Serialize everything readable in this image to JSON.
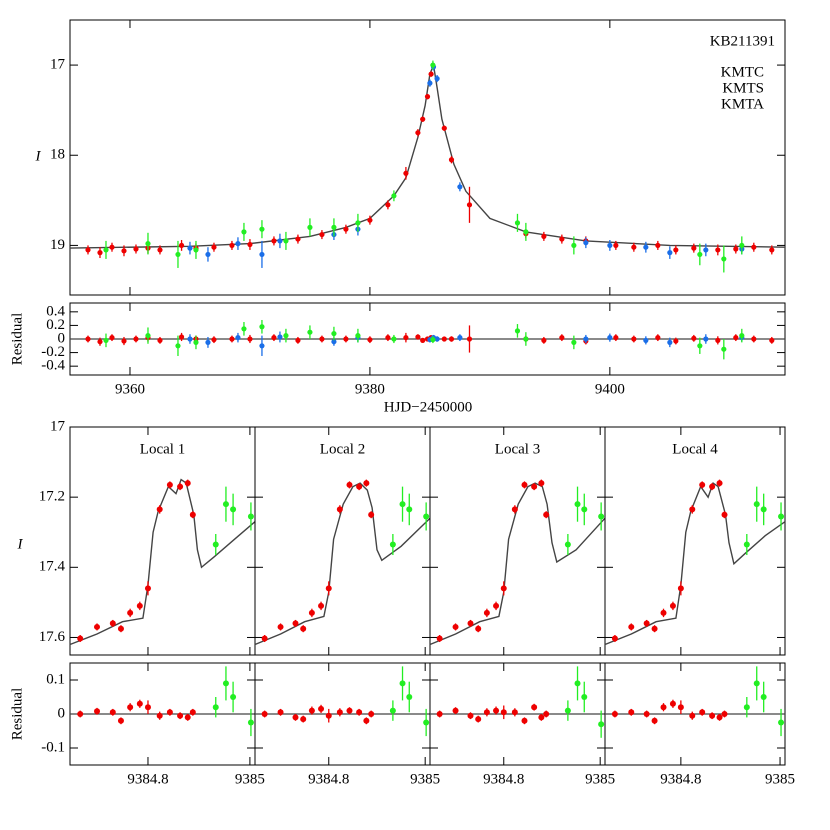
{
  "chart_data": [
    {
      "type": "scatter",
      "title": "KB211391",
      "ylabel": "I",
      "xlabel": "HJD−2450000",
      "residual_label": "Residual",
      "xlim": [
        9355,
        9414.6
      ],
      "xticks": [
        9360,
        9380,
        9400
      ],
      "ylim": [
        19.55,
        16.5
      ],
      "yticks": [
        17,
        18,
        19
      ],
      "residual_ylim": [
        -0.53,
        0.53
      ],
      "residual_yticks": [
        0.4,
        0.2,
        0,
        -0.2,
        -0.4
      ],
      "model": {
        "color": "#444444",
        "x": [
          9355,
          9365,
          9370,
          9375,
          9378,
          9380,
          9382,
          9383,
          9384,
          9384.6,
          9385,
          9385.3,
          9385.6,
          9386,
          9387,
          9388,
          9390,
          9393,
          9398,
          9405,
          9414.6
        ],
        "values": [
          19.03,
          19.01,
          18.98,
          18.9,
          18.8,
          18.7,
          18.45,
          18.25,
          17.8,
          17.45,
          17.1,
          17.0,
          17.25,
          17.6,
          18.1,
          18.4,
          18.7,
          18.85,
          18.95,
          19.0,
          19.02
        ]
      },
      "series": [
        {
          "name": "KMTC",
          "color": "#ee0000",
          "x": [
            9356.5,
            9357.5,
            9358.5,
            9359.5,
            9360.5,
            9361.5,
            9362.5,
            9364.3,
            9365.5,
            9367,
            9368.5,
            9370,
            9372,
            9374,
            9376,
            9378,
            9380,
            9381.5,
            9383,
            9384,
            9384.4,
            9384.8,
            9385.1,
            9386.2,
            9386.8,
            9388.3,
            9393,
            9394.5,
            9396,
            9398,
            9400.5,
            9402,
            9404,
            9405.5,
            9407,
            9409,
            9410.5,
            9412,
            9413.5
          ],
          "values": [
            19.05,
            19.08,
            19.02,
            19.06,
            19.04,
            19.03,
            19.05,
            19.0,
            19.03,
            19.02,
            19.0,
            18.99,
            18.95,
            18.93,
            18.88,
            18.82,
            18.72,
            18.55,
            18.2,
            17.75,
            17.6,
            17.35,
            17.1,
            17.7,
            18.05,
            18.55,
            18.87,
            18.9,
            18.93,
            18.95,
            19.0,
            19.02,
            19.0,
            19.05,
            19.03,
            19.05,
            19.04,
            19.02,
            19.05
          ],
          "errors": [
            0.05,
            0.06,
            0.05,
            0.06,
            0.05,
            0.06,
            0.05,
            0.06,
            0.05,
            0.05,
            0.05,
            0.06,
            0.05,
            0.05,
            0.05,
            0.05,
            0.05,
            0.05,
            0.07,
            0.04,
            0.03,
            0.03,
            0.03,
            0.03,
            0.04,
            0.2,
            0.05,
            0.05,
            0.05,
            0.05,
            0.05,
            0.05,
            0.05,
            0.05,
            0.05,
            0.06,
            0.05,
            0.05,
            0.05
          ],
          "residuals": [
            0,
            -0.04,
            0.02,
            -0.03,
            0,
            0.02,
            -0.02,
            0.03,
            0,
            -0.01,
            0,
            0,
            0.02,
            -0.02,
            0,
            0,
            -0.01,
            0.02,
            0.02,
            0.03,
            -0.02,
            0,
            0.02,
            0,
            0,
            0,
            0,
            -0.02,
            0.02,
            -0.03,
            0.02,
            0,
            0.02,
            -0.03,
            0.01,
            -0.02,
            0.02,
            0,
            -0.02
          ]
        },
        {
          "name": "KMTS",
          "color": "#1a6ee8",
          "x": [
            9365,
            9366.5,
            9369,
            9371,
            9372.5,
            9377,
            9379,
            9385.0,
            9385.3,
            9385.6,
            9387.5,
            9398,
            9400,
            9403,
            9405,
            9408,
            9411
          ],
          "values": [
            19.03,
            19.1,
            18.98,
            19.1,
            18.95,
            18.88,
            18.82,
            17.2,
            17.02,
            17.15,
            18.35,
            18.97,
            19.0,
            19.02,
            19.08,
            19.05,
            19.04
          ],
          "errors": [
            0.07,
            0.08,
            0.07,
            0.15,
            0.08,
            0.06,
            0.07,
            0.04,
            0.04,
            0.04,
            0.05,
            0.06,
            0.06,
            0.06,
            0.07,
            0.07,
            0.06
          ],
          "residuals": [
            0,
            -0.05,
            0.02,
            -0.1,
            0.03,
            -0.04,
            0.02,
            -0.01,
            0.02,
            0,
            0.02,
            0,
            0.02,
            -0.02,
            -0.05,
            0,
            0.02
          ]
        },
        {
          "name": "KMTA",
          "color": "#22ee22",
          "x": [
            9358,
            9361.5,
            9364,
            9365.5,
            9369.5,
            9371,
            9373,
            9375,
            9377,
            9379,
            9382,
            9385.25,
            9392.3,
            9393,
            9397,
            9407.5,
            9409.5,
            9411
          ],
          "values": [
            19.05,
            18.98,
            19.1,
            19.05,
            18.85,
            18.82,
            18.95,
            18.8,
            18.8,
            18.75,
            18.45,
            17.0,
            18.75,
            18.85,
            19.0,
            19.1,
            19.15,
            19.0
          ],
          "errors": [
            0.1,
            0.12,
            0.15,
            0.1,
            0.1,
            0.1,
            0.1,
            0.1,
            0.1,
            0.1,
            0.06,
            0.05,
            0.1,
            0.1,
            0.1,
            0.12,
            0.15,
            0.1
          ],
          "residuals": [
            -0.02,
            0.05,
            -0.1,
            -0.05,
            0.15,
            0.18,
            0.05,
            0.1,
            0.08,
            0.05,
            0,
            -0.01,
            0.12,
            0,
            -0.05,
            -0.1,
            -0.15,
            0.05
          ]
        }
      ]
    },
    {
      "type": "scatter",
      "title": "Local 1",
      "ylabel": "I",
      "residual_label": "Residual",
      "xlim": [
        9384.647,
        9385.01
      ],
      "xticks": [
        9384.8,
        9385
      ],
      "ylim": [
        17.65,
        17.0
      ],
      "yticks": [
        17,
        17.2,
        17.4,
        17.6
      ],
      "residual_ylim": [
        -0.15,
        0.15
      ],
      "residual_yticks": [
        0.1,
        0,
        -0.1
      ],
      "model": {
        "color": "#444444",
        "x": [
          9384.647,
          9384.7,
          9384.75,
          9384.79,
          9384.8,
          9384.81,
          9384.82,
          9384.84,
          9384.855,
          9384.865,
          9384.875,
          9384.89,
          9384.897,
          9384.905,
          9384.93,
          9384.97,
          9385.01
        ],
        "values": [
          17.62,
          17.59,
          17.555,
          17.545,
          17.45,
          17.3,
          17.24,
          17.17,
          17.19,
          17.15,
          17.16,
          17.25,
          17.35,
          17.4,
          17.37,
          17.32,
          17.27
        ]
      },
      "series": [
        {
          "color": "#ee0000",
          "x": [
            9384.667,
            9384.7,
            9384.731,
            9384.747,
            9384.765,
            9384.784,
            9384.8,
            9384.823,
            9384.843,
            9384.863,
            9384.878,
            9384.888
          ],
          "values": [
            17.603,
            17.57,
            17.56,
            17.575,
            17.53,
            17.51,
            17.46,
            17.235,
            17.165,
            17.17,
            17.16,
            17.25
          ],
          "errors": [
            0.01,
            0.01,
            0.01,
            0.01,
            0.012,
            0.012,
            0.02,
            0.012,
            0.01,
            0.01,
            0.01,
            0.01
          ],
          "residuals": [
            0,
            0.008,
            0.005,
            -0.02,
            0.02,
            0.03,
            0.02,
            -0.005,
            0.005,
            -0.005,
            -0.01,
            0.005
          ]
        },
        {
          "color": "#22ee22",
          "x": [
            9384.933,
            9384.953,
            9384.967,
            9385.002
          ],
          "values": [
            17.335,
            17.22,
            17.235,
            17.255
          ],
          "errors": [
            0.03,
            0.05,
            0.045,
            0.04
          ],
          "residuals": [
            0.02,
            0.09,
            0.05,
            -0.025
          ]
        }
      ]
    },
    {
      "type": "scatter",
      "title": "Local 2",
      "xlim": [
        9384.647,
        9385.01
      ],
      "xticks": [
        9384.8,
        9385
      ],
      "ylim": [
        17.65,
        17.0
      ],
      "yticks": [
        17,
        17.2,
        17.4,
        17.6
      ],
      "residual_ylim": [
        -0.15,
        0.15
      ],
      "residual_yticks": [
        0.1,
        0,
        -0.1
      ],
      "model": {
        "color": "#444444",
        "x": [
          9384.647,
          9384.7,
          9384.75,
          9384.79,
          9384.8,
          9384.81,
          9384.83,
          9384.85,
          9384.865,
          9384.88,
          9384.89,
          9384.9,
          9384.91,
          9384.95,
          9385.01
        ],
        "values": [
          17.62,
          17.59,
          17.555,
          17.54,
          17.47,
          17.32,
          17.22,
          17.17,
          17.16,
          17.18,
          17.23,
          17.35,
          17.38,
          17.34,
          17.26
        ]
      },
      "series": [
        {
          "color": "#ee0000",
          "x": [
            9384.667,
            9384.7,
            9384.731,
            9384.747,
            9384.765,
            9384.784,
            9384.8,
            9384.823,
            9384.843,
            9384.863,
            9384.878,
            9384.888
          ],
          "values": [
            17.603,
            17.57,
            17.56,
            17.575,
            17.53,
            17.51,
            17.46,
            17.235,
            17.165,
            17.17,
            17.16,
            17.25
          ],
          "errors": [
            0.01,
            0.01,
            0.01,
            0.01,
            0.012,
            0.012,
            0.02,
            0.012,
            0.01,
            0.01,
            0.01,
            0.01
          ],
          "residuals": [
            0,
            0.005,
            -0.01,
            -0.015,
            0.01,
            0.015,
            -0.005,
            0.005,
            0.01,
            0.005,
            -0.02,
            0
          ]
        },
        {
          "color": "#22ee22",
          "x": [
            9384.933,
            9384.953,
            9384.967,
            9385.002
          ],
          "values": [
            17.335,
            17.22,
            17.235,
            17.255
          ],
          "errors": [
            0.03,
            0.05,
            0.045,
            0.04
          ],
          "residuals": [
            0.01,
            0.09,
            0.05,
            -0.025
          ]
        }
      ]
    },
    {
      "type": "scatter",
      "title": "Local 3",
      "xlim": [
        9384.647,
        9385.01
      ],
      "xticks": [
        9384.8,
        9385
      ],
      "ylim": [
        17.65,
        17.0
      ],
      "yticks": [
        17,
        17.2,
        17.4,
        17.6
      ],
      "residual_ylim": [
        -0.15,
        0.15
      ],
      "residual_yticks": [
        0.1,
        0,
        -0.1
      ],
      "model": {
        "color": "#444444",
        "x": [
          9384.647,
          9384.7,
          9384.75,
          9384.79,
          9384.8,
          9384.81,
          9384.83,
          9384.85,
          9384.865,
          9384.88,
          9384.89,
          9384.9,
          9384.91,
          9384.95,
          9385.01
        ],
        "values": [
          17.62,
          17.59,
          17.555,
          17.54,
          17.47,
          17.32,
          17.22,
          17.17,
          17.16,
          17.17,
          17.22,
          17.33,
          17.385,
          17.35,
          17.26
        ]
      },
      "series": [
        {
          "color": "#ee0000",
          "x": [
            9384.667,
            9384.7,
            9384.731,
            9384.747,
            9384.765,
            9384.784,
            9384.8,
            9384.823,
            9384.843,
            9384.863,
            9384.878,
            9384.888
          ],
          "values": [
            17.603,
            17.57,
            17.56,
            17.575,
            17.53,
            17.51,
            17.46,
            17.235,
            17.165,
            17.17,
            17.16,
            17.25
          ],
          "errors": [
            0.01,
            0.01,
            0.01,
            0.01,
            0.012,
            0.012,
            0.02,
            0.012,
            0.01,
            0.01,
            0.01,
            0.01
          ],
          "residuals": [
            0,
            0.01,
            -0.005,
            -0.015,
            0.005,
            0.01,
            0.005,
            0.005,
            -0.02,
            0.02,
            -0.01,
            0
          ]
        },
        {
          "color": "#22ee22",
          "x": [
            9384.933,
            9384.953,
            9384.967,
            9385.002
          ],
          "values": [
            17.335,
            17.22,
            17.235,
            17.255
          ],
          "errors": [
            0.03,
            0.05,
            0.045,
            0.04
          ],
          "residuals": [
            0.01,
            0.09,
            0.05,
            -0.03
          ]
        }
      ]
    },
    {
      "type": "scatter",
      "title": "Local 4",
      "xlim": [
        9384.647,
        9385.01
      ],
      "xticks": [
        9384.8,
        9385
      ],
      "ylim": [
        17.65,
        17.0
      ],
      "yticks": [
        17,
        17.2,
        17.4,
        17.6
      ],
      "residual_ylim": [
        -0.15,
        0.15
      ],
      "residual_yticks": [
        0.1,
        0,
        -0.1
      ],
      "model": {
        "color": "#444444",
        "x": [
          9384.647,
          9384.7,
          9384.75,
          9384.79,
          9384.8,
          9384.81,
          9384.82,
          9384.84,
          9384.855,
          9384.865,
          9384.875,
          9384.89,
          9384.897,
          9384.907,
          9384.93,
          9384.97,
          9385.01
        ],
        "values": [
          17.62,
          17.59,
          17.555,
          17.545,
          17.45,
          17.3,
          17.24,
          17.17,
          17.2,
          17.16,
          17.17,
          17.25,
          17.33,
          17.39,
          17.36,
          17.31,
          17.27
        ]
      },
      "series": [
        {
          "color": "#ee0000",
          "x": [
            9384.667,
            9384.7,
            9384.731,
            9384.747,
            9384.765,
            9384.784,
            9384.8,
            9384.823,
            9384.843,
            9384.863,
            9384.878,
            9384.888
          ],
          "values": [
            17.603,
            17.57,
            17.56,
            17.575,
            17.53,
            17.51,
            17.46,
            17.235,
            17.165,
            17.17,
            17.16,
            17.25
          ],
          "errors": [
            0.01,
            0.01,
            0.01,
            0.01,
            0.012,
            0.012,
            0.02,
            0.012,
            0.01,
            0.01,
            0.01,
            0.01
          ],
          "residuals": [
            0,
            0.005,
            0.0,
            -0.02,
            0.02,
            0.03,
            0.02,
            -0.005,
            0.005,
            -0.005,
            -0.01,
            0
          ]
        },
        {
          "color": "#22ee22",
          "x": [
            9384.933,
            9384.953,
            9384.967,
            9385.002
          ],
          "values": [
            17.335,
            17.22,
            17.235,
            17.255
          ],
          "errors": [
            0.03,
            0.05,
            0.045,
            0.04
          ],
          "residuals": [
            0.02,
            0.09,
            0.05,
            -0.025
          ]
        }
      ]
    }
  ]
}
